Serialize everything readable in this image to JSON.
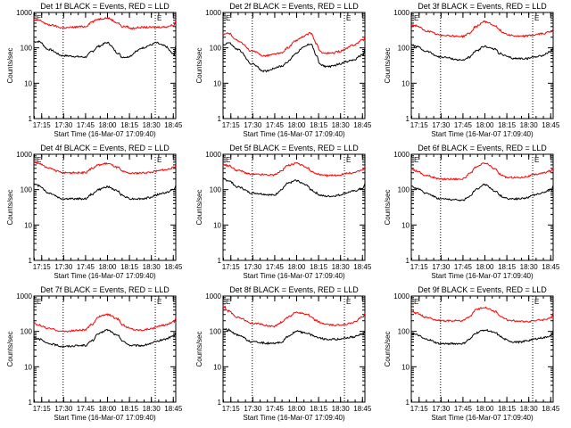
{
  "colors": {
    "events": "#000000",
    "lld": "#ff0000",
    "axis": "#000000",
    "background": "#ffffff"
  },
  "common": {
    "x_ticks": [
      "17:15",
      "17:30",
      "17:45",
      "18:00",
      "18:15",
      "18:30",
      "18:45"
    ],
    "y_ticks": [
      "1",
      "10",
      "100",
      "1000"
    ],
    "ylabel": "Counts/sec",
    "xlabel": "Start Time (16-Mar-07 17:09:40)",
    "marker_label": "E"
  },
  "chart_data": [
    {
      "type": "line",
      "title": "Det 1f BLACK = Events, RED = LLD",
      "x_unit": "minutes after 17:09:40",
      "x": [
        0,
        3.5,
        10,
        20,
        35,
        40,
        44,
        50,
        58,
        60,
        64,
        66,
        70,
        74,
        80,
        83,
        89,
        96,
        97
      ],
      "xlim": [
        0,
        97
      ],
      "ylim": [
        1,
        1000
      ],
      "y_scale": "log",
      "dotted_x": [
        20,
        83
      ],
      "series": [
        {
          "name": "Events",
          "color": "#000000",
          "values": [
            150,
            150,
            90,
            60,
            55,
            80,
            110,
            140,
            70,
            55,
            55,
            60,
            80,
            100,
            120,
            140,
            115,
            65,
            120
          ]
        },
        {
          "name": "LLD",
          "color": "#ff0000",
          "values": [
            600,
            600,
            450,
            370,
            400,
            550,
            650,
            700,
            500,
            400,
            400,
            350,
            370,
            380,
            380,
            385,
            390,
            440,
            600
          ]
        }
      ]
    },
    {
      "type": "line",
      "title": "Det 2f BLACK = Events, RED = LLD",
      "x_unit": "minutes after 17:09:40",
      "x": [
        0,
        3.5,
        10,
        20,
        28,
        40,
        44,
        50,
        54,
        60,
        64,
        66,
        70,
        74,
        80,
        83,
        89,
        96,
        97
      ],
      "xlim": [
        0,
        97
      ],
      "ylim": [
        1,
        1000
      ],
      "y_scale": "log",
      "dotted_x": [
        20,
        83
      ],
      "series": [
        {
          "name": "Events",
          "color": "#000000",
          "values": [
            120,
            140,
            90,
            35,
            22,
            30,
            40,
            70,
            100,
            130,
            60,
            35,
            30,
            30,
            35,
            40,
            45,
            65,
            100
          ]
        },
        {
          "name": "LLD",
          "color": "#ff0000",
          "values": [
            230,
            260,
            160,
            80,
            60,
            70,
            100,
            160,
            200,
            260,
            130,
            80,
            70,
            70,
            80,
            90,
            120,
            170,
            200
          ]
        }
      ]
    },
    {
      "type": "line",
      "title": "Det 3f BLACK = Events, RED = LLD",
      "x_unit": "minutes after 17:09:40",
      "x": [
        0,
        3.5,
        10,
        20,
        35,
        40,
        44,
        50,
        58,
        60,
        64,
        66,
        70,
        74,
        80,
        83,
        89,
        96,
        97
      ],
      "xlim": [
        0,
        97
      ],
      "ylim": [
        1,
        1000
      ],
      "y_scale": "log",
      "dotted_x": [
        20,
        83
      ],
      "series": [
        {
          "name": "Events",
          "color": "#000000",
          "values": [
            120,
            110,
            80,
            55,
            45,
            55,
            80,
            110,
            90,
            70,
            60,
            55,
            50,
            50,
            50,
            55,
            60,
            80,
            110
          ]
        },
        {
          "name": "LLD",
          "color": "#ff0000",
          "values": [
            450,
            420,
            300,
            230,
            210,
            260,
            400,
            550,
            420,
            320,
            260,
            240,
            220,
            210,
            220,
            230,
            250,
            290,
            350
          ]
        }
      ]
    },
    {
      "type": "line",
      "title": "Det 4f BLACK = Events, RED = LLD",
      "x_unit": "minutes after 17:09:40",
      "x": [
        0,
        3.5,
        10,
        20,
        35,
        40,
        44,
        50,
        58,
        60,
        64,
        66,
        70,
        74,
        80,
        83,
        89,
        96,
        97
      ],
      "xlim": [
        0,
        97
      ],
      "ylim": [
        1,
        1000
      ],
      "y_scale": "log",
      "dotted_x": [
        20,
        83
      ],
      "series": [
        {
          "name": "Events",
          "color": "#000000",
          "values": [
            140,
            130,
            80,
            55,
            55,
            75,
            100,
            120,
            90,
            70,
            60,
            55,
            55,
            55,
            60,
            70,
            80,
            100,
            130
          ]
        },
        {
          "name": "LLD",
          "color": "#ff0000",
          "values": [
            600,
            550,
            400,
            300,
            300,
            400,
            500,
            550,
            420,
            330,
            300,
            290,
            290,
            300,
            310,
            330,
            360,
            420,
            480
          ]
        }
      ]
    },
    {
      "type": "line",
      "title": "Det 5f BLACK = Events, RED = LLD",
      "x_unit": "minutes after 17:09:40",
      "x": [
        0,
        3.5,
        10,
        20,
        35,
        40,
        44,
        50,
        58,
        60,
        64,
        66,
        70,
        74,
        80,
        83,
        89,
        96,
        97
      ],
      "xlim": [
        0,
        97
      ],
      "ylim": [
        1,
        1000
      ],
      "y_scale": "log",
      "dotted_x": [
        20,
        83
      ],
      "series": [
        {
          "name": "Events",
          "color": "#000000",
          "values": [
            200,
            180,
            120,
            80,
            70,
            100,
            150,
            180,
            130,
            100,
            80,
            70,
            65,
            65,
            70,
            80,
            90,
            110,
            150
          ]
        },
        {
          "name": "LLD",
          "color": "#ff0000",
          "values": [
            500,
            480,
            350,
            270,
            260,
            340,
            480,
            550,
            420,
            330,
            280,
            260,
            250,
            250,
            260,
            280,
            300,
            360,
            450
          ]
        }
      ]
    },
    {
      "type": "line",
      "title": "Det 6f BLACK = Events, RED = LLD",
      "x_unit": "minutes after 17:09:40",
      "x": [
        0,
        3.5,
        10,
        20,
        35,
        40,
        44,
        50,
        58,
        60,
        64,
        66,
        70,
        74,
        80,
        83,
        89,
        96,
        97
      ],
      "xlim": [
        0,
        97
      ],
      "ylim": [
        1,
        1000
      ],
      "y_scale": "log",
      "dotted_x": [
        20,
        83
      ],
      "series": [
        {
          "name": "Events",
          "color": "#000000",
          "values": [
            120,
            110,
            80,
            55,
            50,
            65,
            100,
            140,
            90,
            70,
            60,
            55,
            55,
            55,
            60,
            70,
            80,
            100,
            130
          ]
        },
        {
          "name": "LLD",
          "color": "#ff0000",
          "values": [
            380,
            340,
            250,
            200,
            200,
            280,
            420,
            560,
            380,
            280,
            230,
            220,
            220,
            220,
            240,
            260,
            290,
            340,
            420
          ]
        }
      ]
    },
    {
      "type": "line",
      "title": "Det 7f BLACK = Events, RED = LLD",
      "x_unit": "minutes after 17:09:40",
      "x": [
        0,
        3.5,
        10,
        20,
        35,
        40,
        44,
        50,
        58,
        60,
        64,
        66,
        70,
        74,
        80,
        83,
        89,
        96,
        97
      ],
      "xlim": [
        0,
        97
      ],
      "ylim": [
        1,
        1000
      ],
      "y_scale": "log",
      "dotted_x": [
        20,
        83
      ],
      "series": [
        {
          "name": "Events",
          "color": "#000000",
          "values": [
            70,
            60,
            45,
            38,
            40,
            55,
            85,
            110,
            75,
            55,
            45,
            40,
            40,
            40,
            45,
            50,
            60,
            75,
            90
          ]
        },
        {
          "name": "LLD",
          "color": "#ff0000",
          "values": [
            170,
            150,
            120,
            100,
            110,
            160,
            260,
            300,
            220,
            160,
            130,
            120,
            110,
            110,
            120,
            130,
            150,
            190,
            240
          ]
        }
      ]
    },
    {
      "type": "line",
      "title": "Det 8f BLACK = Events, RED = LLD",
      "x_unit": "minutes after 17:09:40",
      "x": [
        0,
        3.5,
        10,
        20,
        35,
        40,
        44,
        50,
        58,
        60,
        64,
        66,
        70,
        74,
        80,
        83,
        89,
        96,
        97
      ],
      "xlim": [
        0,
        97
      ],
      "ylim": [
        1,
        1000
      ],
      "y_scale": "log",
      "dotted_x": [
        20,
        83
      ],
      "series": [
        {
          "name": "Events",
          "color": "#000000",
          "values": [
            120,
            110,
            80,
            50,
            45,
            50,
            70,
            100,
            90,
            80,
            70,
            65,
            60,
            60,
            60,
            65,
            70,
            85,
            100
          ]
        },
        {
          "name": "LLD",
          "color": "#ff0000",
          "values": [
            500,
            380,
            250,
            170,
            140,
            180,
            250,
            350,
            300,
            250,
            200,
            180,
            160,
            150,
            150,
            160,
            180,
            260,
            330
          ]
        }
      ]
    },
    {
      "type": "line",
      "title": "Det 9f BLACK = Events, RED = LLD",
      "x_unit": "minutes after 17:09:40",
      "x": [
        0,
        3.5,
        10,
        20,
        35,
        40,
        44,
        50,
        58,
        60,
        64,
        66,
        70,
        74,
        80,
        83,
        89,
        96,
        97
      ],
      "xlim": [
        0,
        97
      ],
      "ylim": [
        1,
        1000
      ],
      "y_scale": "log",
      "dotted_x": [
        20,
        83
      ],
      "series": [
        {
          "name": "Events",
          "color": "#000000",
          "values": [
            90,
            80,
            60,
            45,
            45,
            60,
            90,
            110,
            90,
            75,
            60,
            55,
            50,
            50,
            55,
            60,
            65,
            75,
            100
          ]
        },
        {
          "name": "LLD",
          "color": "#ff0000",
          "values": [
            380,
            330,
            250,
            200,
            200,
            260,
            400,
            480,
            360,
            280,
            230,
            210,
            200,
            190,
            190,
            200,
            210,
            240,
            350
          ]
        }
      ]
    }
  ]
}
